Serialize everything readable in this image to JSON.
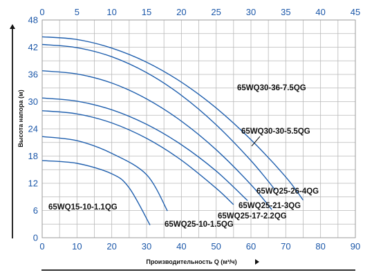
{
  "chart_data": {
    "type": "line",
    "xlabel": "Производительность Q (м³/ч)",
    "ylabel": "Высота напора (м)",
    "x_unit_bottom": "m3/h",
    "x_unit_top": "l/s",
    "xlim": [
      0,
      90
    ],
    "ylim": [
      0,
      48
    ],
    "x2lim": [
      0,
      45
    ],
    "x_ticks": [
      0,
      10,
      20,
      30,
      40,
      50,
      60,
      70,
      80,
      90
    ],
    "y_ticks": [
      0,
      6,
      12,
      18,
      24,
      30,
      36,
      42,
      48
    ],
    "x2_ticks": [
      0,
      5,
      10,
      15,
      20,
      25,
      30,
      35,
      40,
      45
    ],
    "grid": true,
    "curve_color": "#1f5fae",
    "series": [
      {
        "name": "65WQ30-36-7.5QG",
        "x": [
          0,
          10,
          20,
          30,
          40,
          50,
          60,
          70,
          75
        ],
        "y": [
          44.3,
          43.7,
          41.8,
          38.7,
          34.3,
          28.6,
          21.6,
          13.4,
          8.3
        ]
      },
      {
        "name": "65WQ30-30-5.5QG",
        "x": [
          0,
          10,
          20,
          30,
          40,
          50,
          60,
          67
        ],
        "y": [
          42.6,
          41.9,
          39.9,
          36.4,
          31.4,
          24.9,
          17.0,
          10.5
        ]
      },
      {
        "name": "65WQ25-26-4QG",
        "x": [
          0,
          10,
          20,
          30,
          40,
          50,
          60,
          66
        ],
        "y": [
          36.8,
          36.1,
          34.1,
          30.6,
          25.7,
          19.4,
          11.7,
          6.2
        ]
      },
      {
        "name": "65WQ25-21-3QG",
        "x": [
          0,
          10,
          20,
          30,
          40,
          50,
          59
        ],
        "y": [
          30.8,
          30.1,
          28.2,
          25.0,
          20.5,
          14.7,
          8.2
        ]
      },
      {
        "name": "65WQ25-17-2.2QG",
        "x": [
          0,
          10,
          20,
          30,
          40,
          50,
          55
        ],
        "y": [
          28.0,
          27.3,
          25.3,
          21.9,
          17.1,
          10.9,
          7.3
        ]
      },
      {
        "name": "65WQ25-10-1.5QG",
        "x": [
          0,
          10,
          20,
          30,
          36
        ],
        "y": [
          22.3,
          21.4,
          18.6,
          13.9,
          5.9
        ]
      },
      {
        "name": "65WQ15-10-1.1QG",
        "x": [
          0,
          10,
          20,
          25,
          31
        ],
        "y": [
          17.0,
          16.4,
          14.1,
          11.0,
          2.8
        ]
      }
    ]
  }
}
